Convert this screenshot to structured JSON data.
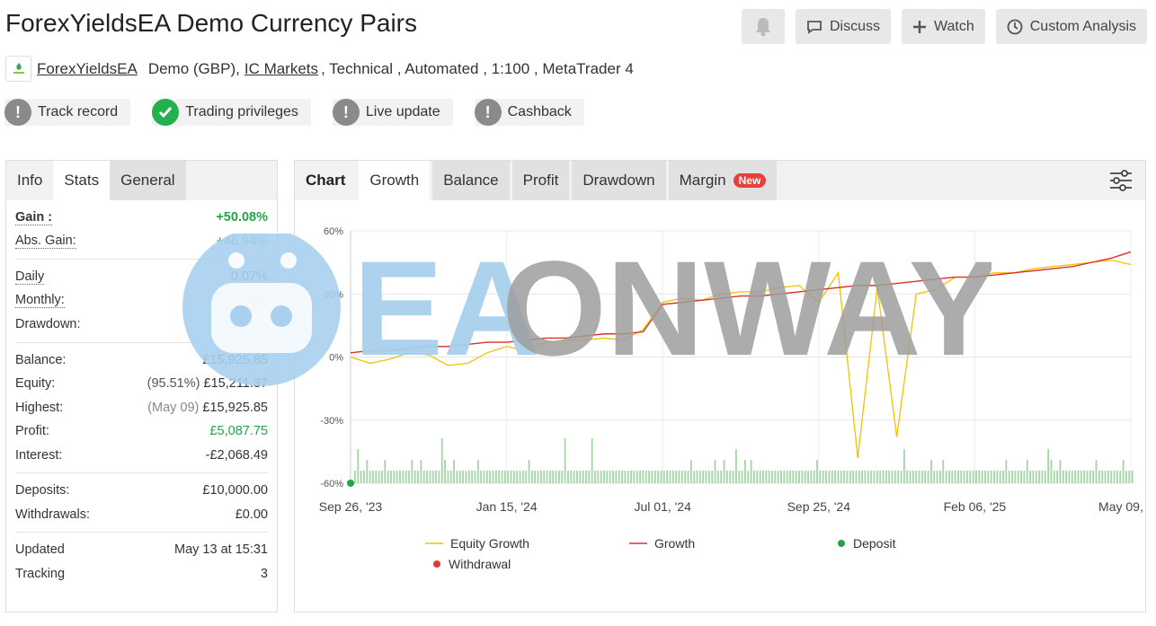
{
  "page": {
    "title": "ForexYieldsEA Demo Currency Pairs"
  },
  "top_buttons": {
    "discuss": "Discuss",
    "watch": "Watch",
    "custom_analysis": "Custom Analysis"
  },
  "meta": {
    "system_name": "ForexYieldsEA",
    "account_type": "Demo (GBP),",
    "broker": "IC Markets",
    "rest": ", Technical , Automated , 1:100 , MetaTrader 4"
  },
  "badges": [
    {
      "label": "Track record",
      "status": "warning"
    },
    {
      "label": "Trading privileges",
      "status": "ok"
    },
    {
      "label": "Live update",
      "status": "warning"
    },
    {
      "label": "Cashback",
      "status": "warning"
    }
  ],
  "left_tabs": [
    "Info",
    "Stats",
    "General"
  ],
  "stats": {
    "gain_label": "Gain :",
    "gain": "+50.08%",
    "abs_gain_label": "Abs. Gain:",
    "abs_gain": "+46.94%",
    "daily_label": "Daily",
    "daily": "0.07%",
    "monthly_label": "Monthly:",
    "monthly": "2.08%",
    "drawdown_label": "Drawdown:",
    "drawdown": "62.94%",
    "balance_label": "Balance:",
    "balance": "£15,925.85",
    "equity_label": "Equity:",
    "equity_pct": "(95.51%)",
    "equity": "£15,211.37",
    "highest_label": "Highest:",
    "highest_date": "(May 09)",
    "highest": "£15,925.85",
    "profit_label": "Profit:",
    "profit": "£5,087.75",
    "interest_label": "Interest:",
    "interest": "-£2,068.49",
    "deposits_label": "Deposits:",
    "deposits": "£10,000.00",
    "withdrawals_label": "Withdrawals:",
    "withdrawals": "£0.00",
    "updated_label": "Updated",
    "updated": "May 13 at 15:31",
    "tracking_label": "Tracking",
    "tracking": "3"
  },
  "chart_tabs": [
    "Chart",
    "Growth",
    "Balance",
    "Profit",
    "Drawdown",
    "Margin"
  ],
  "new_badge": "New",
  "watermark": {
    "text": "EAONWAY"
  },
  "chart_data": {
    "type": "line",
    "y_ticks": [
      "60%",
      "30%",
      "0%",
      "-30%",
      "-60%"
    ],
    "ylim": [
      -60,
      60
    ],
    "x_ticks": [
      "Sep 26, '23",
      "Jan 15, '24",
      "Jul 01, '24",
      "Sep 25, '24",
      "Feb 06, '25",
      "May 09, '25"
    ],
    "grid": true,
    "legend_position": "bottom",
    "series": [
      {
        "name": "Equity Growth",
        "color": "#f2c200",
        "x": [
          0,
          1,
          2,
          3,
          4,
          5,
          6,
          7,
          8,
          9,
          10,
          11,
          12,
          13,
          14,
          15,
          16,
          17,
          18,
          19,
          20,
          21,
          22,
          23,
          24,
          25,
          26,
          27,
          28,
          29,
          30,
          31,
          32,
          33,
          34,
          35,
          36,
          37,
          38,
          39,
          40
        ],
        "values": [
          0,
          -3,
          -1,
          2,
          1,
          -4,
          -3,
          2,
          5,
          3,
          7,
          8,
          8,
          9,
          8,
          13,
          26,
          28,
          27,
          30,
          31,
          31,
          33,
          34,
          26,
          40,
          -48,
          33,
          -38,
          30,
          32,
          38,
          38,
          40,
          40,
          42,
          43,
          44,
          45,
          46,
          44
        ]
      },
      {
        "name": "Growth",
        "color": "#d9322a",
        "x": [
          0,
          1,
          2,
          3,
          4,
          5,
          6,
          7,
          8,
          9,
          10,
          11,
          12,
          13,
          14,
          15,
          16,
          17,
          18,
          19,
          20,
          21,
          22,
          23,
          24,
          25,
          26,
          27,
          28,
          29,
          30,
          31,
          32,
          33,
          34,
          35,
          36,
          37,
          38,
          39,
          40
        ],
        "values": [
          2,
          3,
          3,
          4,
          5,
          5,
          6,
          7,
          7,
          8,
          9,
          9,
          10,
          11,
          11,
          12,
          25,
          26,
          27,
          28,
          29,
          29,
          30,
          31,
          32,
          33,
          34,
          34,
          35,
          36,
          37,
          38,
          38,
          39,
          40,
          41,
          42,
          43,
          45,
          47,
          50
        ]
      },
      {
        "name": "Deposit",
        "color": "#23a347"
      },
      {
        "name": "Withdrawal",
        "color": "#e53935"
      }
    ],
    "volume_bars": [
      1,
      3,
      1,
      1,
      2,
      1,
      1,
      1,
      1,
      1,
      2,
      1,
      1,
      1,
      1,
      1,
      1,
      1,
      1,
      2,
      1,
      1,
      2,
      1,
      1,
      1,
      1,
      1,
      1,
      4,
      2,
      1,
      1,
      2,
      1,
      1,
      1,
      1,
      1,
      1,
      1,
      2,
      1,
      1,
      1,
      1,
      1,
      1,
      1,
      1,
      1,
      1,
      1,
      1,
      1,
      1,
      1,
      1,
      2,
      1,
      1,
      1,
      1,
      1,
      1,
      1,
      1,
      1,
      1,
      1,
      4,
      1,
      1,
      1,
      1,
      1,
      1,
      1,
      1,
      4,
      1,
      1,
      1,
      1,
      1,
      1,
      1,
      1,
      1,
      1,
      1,
      1,
      1,
      1,
      1,
      1,
      1,
      1,
      1,
      1,
      1,
      1,
      1,
      1,
      1,
      1,
      1,
      1,
      1,
      1,
      1,
      1,
      2,
      1,
      1,
      1,
      1,
      1,
      1,
      1,
      2,
      1,
      1,
      2,
      1,
      1,
      1,
      3,
      1,
      1,
      2,
      1,
      2,
      1,
      1,
      1,
      1,
      1,
      1,
      1,
      1,
      1,
      1,
      1,
      1,
      1,
      1,
      1,
      1,
      1,
      1,
      1,
      1,
      1,
      2,
      1,
      1,
      1,
      1,
      1,
      1,
      1,
      1,
      1,
      1,
      1,
      1,
      1,
      1,
      1,
      1,
      1,
      1,
      1,
      1,
      1,
      1,
      1,
      1,
      1,
      1,
      1,
      1,
      3,
      1,
      1,
      1,
      1,
      1,
      1,
      1,
      1,
      2,
      1,
      1,
      1,
      2,
      1,
      1,
      1,
      1,
      1,
      1,
      1,
      1,
      1,
      1,
      1,
      1,
      1,
      1,
      1,
      1,
      1,
      1,
      1,
      1,
      2,
      1,
      1,
      1,
      1,
      1,
      1,
      2,
      1,
      1,
      1,
      1,
      1,
      1,
      3,
      2,
      1,
      1,
      2,
      1,
      1,
      1,
      1,
      1,
      1,
      1,
      1,
      1,
      1,
      1,
      2,
      1,
      1,
      1,
      1,
      1,
      1,
      1,
      1,
      2,
      1,
      1,
      1
    ]
  }
}
